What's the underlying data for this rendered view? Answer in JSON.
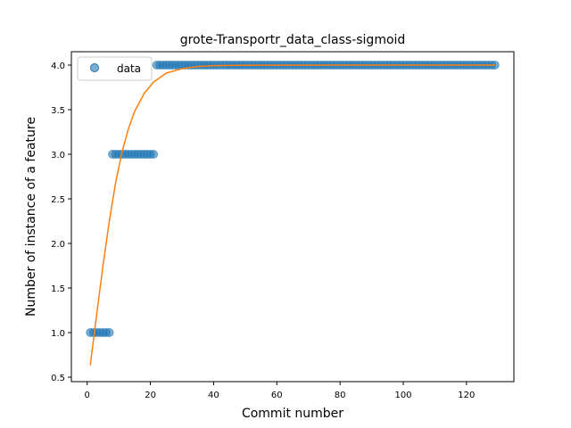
{
  "chart_data": {
    "type": "scatter",
    "title": "grote-Transportr_data_class-sigmoid",
    "xlabel": "Commit number",
    "ylabel": "Number of instance of a feature",
    "xlim": [
      -5,
      135
    ],
    "ylim": [
      0.45,
      4.15
    ],
    "xticks": [
      0,
      20,
      40,
      60,
      80,
      100,
      120
    ],
    "yticks": [
      0.5,
      1.0,
      1.5,
      2.0,
      2.5,
      3.0,
      3.5,
      4.0
    ],
    "grid": false,
    "legend_position": "top-left",
    "series": [
      {
        "name": "data",
        "kind": "scatter",
        "color": "#1f77b4",
        "segments": [
          {
            "x_from": 1,
            "x_to": 7,
            "y": 1.0
          },
          {
            "x_from": 8,
            "x_to": 21,
            "y": 3.0
          },
          {
            "x_from": 22,
            "x_to": 129,
            "y": 4.0
          }
        ]
      },
      {
        "kind": "line",
        "color": "#ff7f0e",
        "model": "sigmoid",
        "fit_points": [
          [
            1,
            0.64
          ],
          [
            3,
            1.2
          ],
          [
            5,
            1.75
          ],
          [
            7,
            2.25
          ],
          [
            9,
            2.68
          ],
          [
            11,
            3.02
          ],
          [
            13,
            3.28
          ],
          [
            15,
            3.48
          ],
          [
            18,
            3.68
          ],
          [
            21,
            3.81
          ],
          [
            25,
            3.91
          ],
          [
            30,
            3.96
          ],
          [
            35,
            3.985
          ],
          [
            40,
            3.994
          ],
          [
            50,
            3.999
          ],
          [
            129,
            4.0
          ]
        ]
      }
    ]
  }
}
